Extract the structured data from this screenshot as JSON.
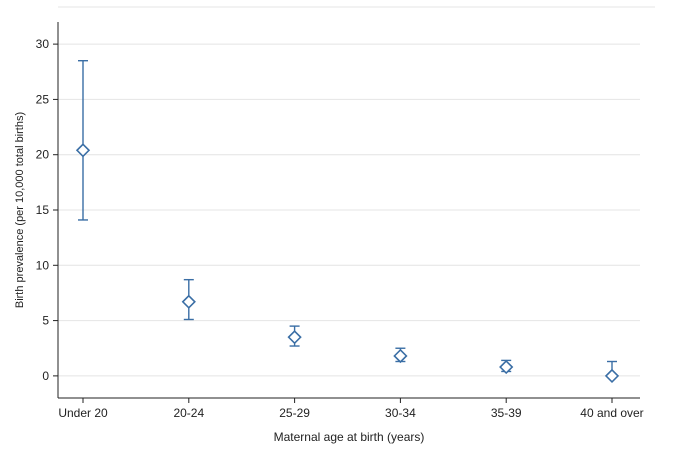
{
  "chart_data": {
    "type": "scatter",
    "title": "",
    "xlabel": "Maternal age at birth (years)",
    "ylabel": "Birth prevalence (per 10,000 total births)",
    "categories": [
      "Under 20",
      "20-24",
      "25-29",
      "30-34",
      "35-39",
      "40 and over"
    ],
    "series": [
      {
        "values": [
          20.4,
          6.7,
          3.5,
          1.8,
          0.8,
          0.0
        ],
        "lower": [
          14.1,
          5.1,
          2.7,
          1.3,
          0.4,
          0.0
        ],
        "upper": [
          28.5,
          8.7,
          4.5,
          2.5,
          1.4,
          1.3
        ]
      }
    ],
    "ylim": [
      -2,
      32
    ],
    "yticks": [
      0,
      5,
      10,
      15,
      20,
      25,
      30
    ],
    "grid": true,
    "marker": "hollow-diamond",
    "color": "#3a6ea5"
  }
}
